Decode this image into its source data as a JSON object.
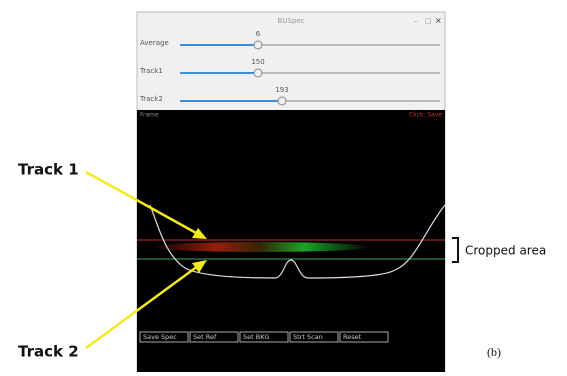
{
  "window": {
    "title": "BUSpec",
    "sliders": [
      {
        "label": "Average",
        "value": 6
      },
      {
        "label": "Track1",
        "value": 150
      },
      {
        "label": "Track2",
        "value": 193
      }
    ],
    "overlay": {
      "left": "Frame",
      "right": "Click: Save"
    },
    "buttons": [
      "Save Spec",
      "Set Ref",
      "Set BKG",
      "Strt Scan",
      "Reset"
    ]
  },
  "annotations": {
    "track1": "Track 1",
    "track2": "Track 2",
    "cropped": "Cropped area",
    "panel": "(b)"
  }
}
